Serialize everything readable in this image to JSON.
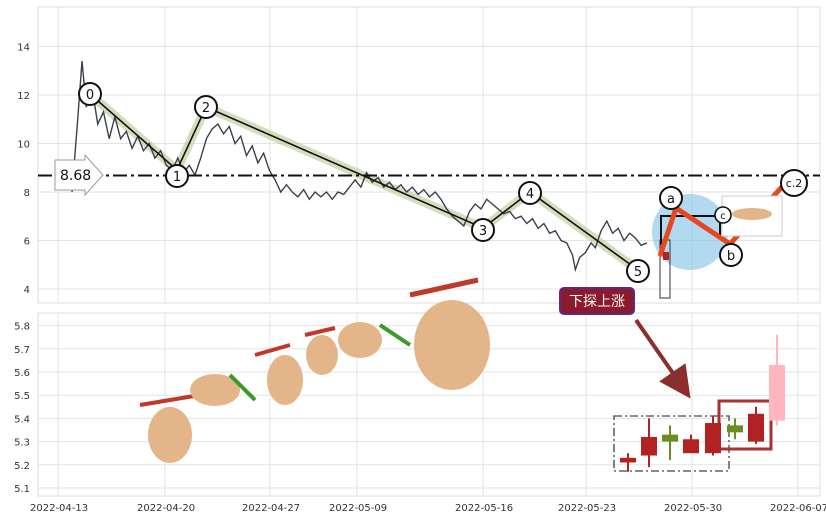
{
  "chart_data": [
    {
      "type": "line",
      "panel": "top",
      "y_ticks": [
        4,
        6,
        8,
        10,
        12,
        14
      ],
      "ylim": [
        3.3,
        15.6
      ],
      "grid": true,
      "reference_line": {
        "value": 8.68,
        "label": "8.68",
        "style": "dash-dot"
      },
      "series": [
        {
          "values": [
            [
              0.0,
              8.0
            ],
            [
              0.4,
              11.0
            ],
            [
              0.7,
              13.4
            ],
            [
              1.0,
              11.5
            ],
            [
              1.4,
              12.3
            ],
            [
              1.8,
              10.8
            ],
            [
              2.2,
              11.3
            ],
            [
              2.6,
              10.2
            ],
            [
              3.0,
              11.1
            ],
            [
              3.4,
              10.2
            ],
            [
              3.8,
              10.5
            ],
            [
              4.2,
              9.8
            ],
            [
              4.6,
              10.3
            ],
            [
              5.0,
              9.7
            ],
            [
              5.4,
              10.0
            ],
            [
              5.8,
              9.4
            ],
            [
              6.2,
              9.7
            ],
            [
              6.6,
              9.1
            ],
            [
              7.0,
              8.9
            ],
            [
              7.4,
              9.4
            ],
            [
              7.8,
              8.8
            ],
            [
              8.2,
              9.1
            ],
            [
              8.6,
              8.7
            ],
            [
              9.0,
              9.4
            ],
            [
              9.4,
              10.2
            ],
            [
              9.8,
              10.6
            ],
            [
              10.2,
              10.8
            ],
            [
              10.6,
              10.4
            ],
            [
              11.0,
              10.7
            ],
            [
              11.4,
              10.0
            ],
            [
              11.8,
              10.3
            ],
            [
              12.2,
              9.5
            ],
            [
              12.6,
              9.9
            ],
            [
              13.0,
              9.2
            ],
            [
              13.4,
              9.6
            ],
            [
              13.8,
              8.9
            ],
            [
              14.2,
              8.5
            ],
            [
              14.6,
              8.0
            ],
            [
              15.0,
              8.3
            ],
            [
              15.4,
              8.0
            ],
            [
              15.8,
              7.8
            ],
            [
              16.2,
              8.1
            ],
            [
              16.6,
              7.7
            ],
            [
              17.0,
              8.0
            ],
            [
              17.4,
              7.8
            ],
            [
              17.8,
              8.0
            ],
            [
              18.2,
              7.7
            ],
            [
              18.6,
              8.0
            ],
            [
              19.0,
              7.9
            ],
            [
              19.4,
              8.2
            ],
            [
              19.8,
              8.5
            ],
            [
              20.2,
              8.2
            ],
            [
              20.6,
              8.8
            ],
            [
              21.0,
              8.4
            ],
            [
              21.4,
              8.6
            ],
            [
              21.8,
              8.2
            ],
            [
              22.2,
              8.4
            ],
            [
              22.6,
              8.1
            ],
            [
              23.0,
              8.3
            ],
            [
              23.4,
              8.0
            ],
            [
              23.8,
              8.2
            ],
            [
              24.2,
              7.9
            ],
            [
              24.6,
              8.1
            ],
            [
              25.0,
              7.8
            ],
            [
              25.4,
              8.0
            ],
            [
              25.8,
              7.7
            ],
            [
              26.2,
              7.3
            ],
            [
              26.6,
              7.0
            ],
            [
              27.0,
              6.8
            ],
            [
              27.4,
              6.6
            ],
            [
              27.8,
              7.2
            ],
            [
              28.2,
              7.5
            ],
            [
              28.6,
              7.3
            ],
            [
              29.0,
              7.7
            ],
            [
              29.4,
              7.5
            ],
            [
              29.8,
              7.3
            ],
            [
              30.2,
              7.1
            ],
            [
              30.6,
              7.2
            ],
            [
              31.0,
              6.9
            ],
            [
              31.4,
              7.0
            ],
            [
              31.8,
              6.7
            ],
            [
              32.2,
              6.9
            ],
            [
              32.6,
              6.5
            ],
            [
              33.0,
              6.7
            ],
            [
              33.4,
              6.3
            ],
            [
              33.8,
              6.4
            ],
            [
              34.2,
              6.0
            ],
            [
              34.6,
              5.9
            ],
            [
              35.0,
              5.4
            ],
            [
              35.2,
              4.8
            ],
            [
              35.5,
              5.3
            ],
            [
              35.9,
              5.5
            ],
            [
              36.3,
              5.9
            ],
            [
              36.6,
              5.7
            ],
            [
              37.0,
              6.4
            ],
            [
              37.4,
              6.8
            ],
            [
              37.8,
              6.3
            ],
            [
              38.2,
              6.5
            ],
            [
              38.6,
              6.0
            ],
            [
              39.0,
              6.3
            ],
            [
              39.4,
              6.1
            ],
            [
              39.8,
              5.8
            ],
            [
              40.2,
              5.9
            ]
          ]
        }
      ],
      "wave_labels": [
        "0",
        "1",
        "2",
        "3",
        "4",
        "5",
        "a",
        "b",
        "c",
        "c.2"
      ]
    },
    {
      "type": "candlestick",
      "panel": "bottom",
      "y_ticks": [
        5.1,
        5.2,
        5.3,
        5.4,
        5.5,
        5.6,
        5.7,
        5.8
      ],
      "ylim": [
        5.07,
        5.85
      ],
      "x_tick_labels": [
        "2022-04-13",
        "2022-04-20",
        "2022-04-27",
        "2022-05-09",
        "2022-05-16",
        "2022-05-23",
        "2022-05-30",
        "2022-06-07"
      ],
      "grid": true,
      "candles": [
        {
          "open": 5.21,
          "high": 5.25,
          "low": 5.17,
          "close": 5.23,
          "color": "#b22222"
        },
        {
          "open": 5.24,
          "high": 5.4,
          "low": 5.19,
          "close": 5.32,
          "color": "#b22222"
        },
        {
          "open": 5.3,
          "high": 5.37,
          "low": 5.22,
          "close": 5.33,
          "color": "#6b8e23"
        },
        {
          "open": 5.25,
          "high": 5.33,
          "low": 5.25,
          "close": 5.31,
          "color": "#b22222"
        },
        {
          "open": 5.25,
          "high": 5.41,
          "low": 5.24,
          "close": 5.38,
          "color": "#b22222"
        },
        {
          "open": 5.37,
          "high": 5.4,
          "low": 5.31,
          "close": 5.34,
          "color": "#6b8e23"
        },
        {
          "open": 5.3,
          "high": 5.45,
          "low": 5.29,
          "close": 5.42,
          "color": "#b22222"
        },
        {
          "open": 5.39,
          "high": 5.76,
          "low": 5.37,
          "close": 5.63,
          "color": "#ffb6c1"
        }
      ],
      "annotation": {
        "text": "下探上涨"
      }
    }
  ]
}
